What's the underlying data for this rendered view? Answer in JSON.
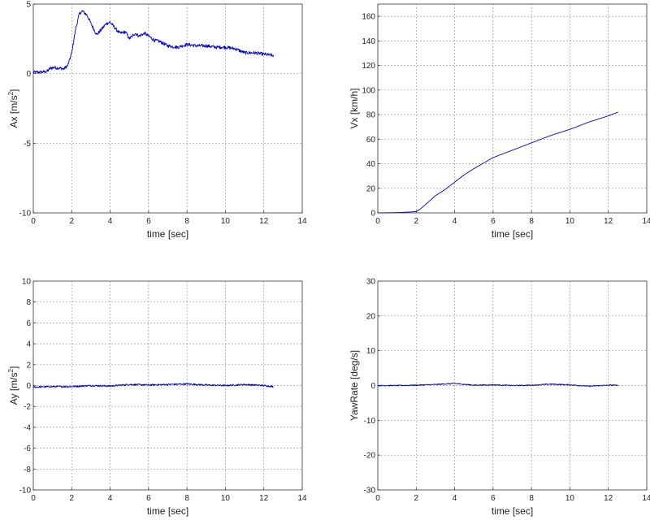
{
  "chart_data": [
    {
      "type": "line",
      "xlabel": "time [sec]",
      "ylabel": {
        "base": "Ax [m/s",
        "sup": "2",
        "end": "]"
      },
      "xlim": [
        0,
        14
      ],
      "ylim": [
        -10,
        5
      ],
      "xticks": [
        0,
        2,
        4,
        6,
        8,
        10,
        12,
        14
      ],
      "yticks": [
        -10,
        -5,
        0,
        5
      ],
      "grid": true,
      "color": "#0000cc",
      "noise": 0.12,
      "series": [
        {
          "x": [
            0,
            0.3,
            0.7,
            0.9,
            1.1,
            1.3,
            1.6,
            1.8,
            2.0,
            2.2,
            2.4,
            2.55,
            2.8,
            3.0,
            3.3,
            3.5,
            3.8,
            4.0,
            4.3,
            4.5,
            4.8,
            5.0,
            5.3,
            5.5,
            5.8,
            6.0,
            6.3,
            6.6,
            7.0,
            7.5,
            8.0,
            8.5,
            9.0,
            9.5,
            10.0,
            10.5,
            11.0,
            11.5,
            12.0,
            12.5
          ],
          "y": [
            0.1,
            0.1,
            0.15,
            0.4,
            0.45,
            0.4,
            0.35,
            0.6,
            1.5,
            3.2,
            4.3,
            4.5,
            4.2,
            3.6,
            2.8,
            3.1,
            3.6,
            3.7,
            3.2,
            2.9,
            3.0,
            2.5,
            2.9,
            2.7,
            2.9,
            2.7,
            2.4,
            2.3,
            2.0,
            1.9,
            2.1,
            2.0,
            2.0,
            1.9,
            1.9,
            1.8,
            1.5,
            1.5,
            1.4,
            1.3
          ]
        }
      ]
    },
    {
      "type": "line",
      "xlabel": "time [sec]",
      "ylabel": {
        "base": "Vx [km/h]",
        "sup": "",
        "end": ""
      },
      "xlim": [
        0,
        14
      ],
      "ylim": [
        0,
        170
      ],
      "xticks": [
        0,
        2,
        4,
        6,
        8,
        10,
        12,
        14
      ],
      "yticks": [
        0,
        20,
        40,
        60,
        80,
        100,
        120,
        140,
        160
      ],
      "grid": true,
      "color": "#0000cc",
      "noise": 0,
      "series": [
        {
          "x": [
            0,
            1.0,
            2.0,
            2.2,
            2.5,
            3.0,
            3.5,
            4.0,
            4.5,
            5.0,
            6.0,
            7.0,
            8.0,
            9.0,
            10.0,
            11.0,
            12.0,
            12.5
          ],
          "y": [
            0,
            0.2,
            1.0,
            3,
            7,
            14,
            19,
            25,
            31,
            36,
            45,
            51,
            57,
            63,
            68,
            74,
            79,
            82
          ]
        }
      ]
    },
    {
      "type": "line",
      "xlabel": "time [sec]",
      "ylabel": {
        "base": "Ay [m/s",
        "sup": "2",
        "end": "]"
      },
      "xlim": [
        0,
        14
      ],
      "ylim": [
        -10,
        10
      ],
      "xticks": [
        0,
        2,
        4,
        6,
        8,
        10,
        12,
        14
      ],
      "yticks": [
        -10,
        -8,
        -6,
        -4,
        -2,
        0,
        2,
        4,
        6,
        8,
        10
      ],
      "grid": true,
      "color": "#0000cc",
      "noise": 0.08,
      "series": [
        {
          "x": [
            0,
            1,
            2,
            3,
            4,
            5,
            6,
            7,
            8,
            9,
            10,
            11,
            12,
            12.5
          ],
          "y": [
            -0.15,
            -0.1,
            -0.1,
            0,
            -0.05,
            0.1,
            0.05,
            0.1,
            0.15,
            0.05,
            0,
            0.1,
            0,
            -0.1
          ]
        }
      ]
    },
    {
      "type": "line",
      "xlabel": "time [sec]",
      "ylabel": {
        "base": "YawRate [deg/s]",
        "sup": "",
        "end": ""
      },
      "xlim": [
        0,
        14
      ],
      "ylim": [
        -30,
        30
      ],
      "xticks": [
        0,
        2,
        4,
        6,
        8,
        10,
        12,
        14
      ],
      "yticks": [
        -30,
        -20,
        -10,
        0,
        10,
        20,
        30
      ],
      "grid": true,
      "color": "#0000cc",
      "noise": 0.15,
      "series": [
        {
          "x": [
            0,
            1,
            2,
            3,
            4,
            5,
            6,
            7,
            8,
            9,
            10,
            11,
            12,
            12.5
          ],
          "y": [
            0,
            0,
            0.1,
            0.3,
            0.6,
            0.1,
            0.2,
            0,
            0.1,
            0.4,
            0.2,
            -0.2,
            0.1,
            0.1
          ]
        }
      ]
    }
  ]
}
